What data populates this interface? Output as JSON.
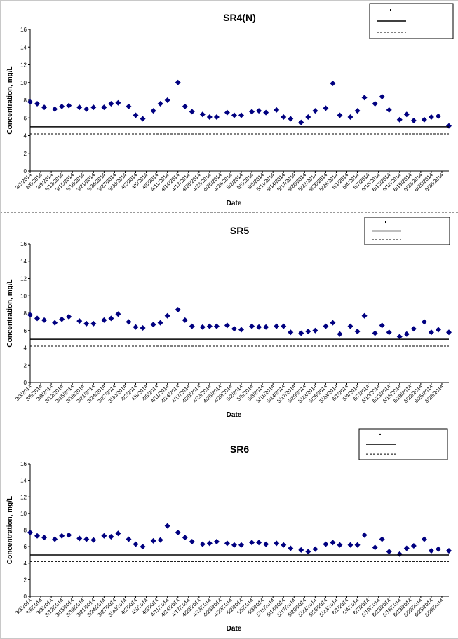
{
  "chart_data": [
    {
      "type": "scatter",
      "title": "SR4(N)",
      "xlabel": "Date",
      "ylabel": "Concentration, mg/L",
      "ylim": [
        0,
        16
      ],
      "yticks": [
        0,
        2,
        4,
        6,
        8,
        10,
        12,
        14,
        16
      ],
      "xlim": [
        "2014-03-03",
        "2014-06-30"
      ],
      "xtick_labels": [
        "3/3/2014",
        "3/6/2014",
        "3/9/2014",
        "3/12/2014",
        "3/15/2014",
        "3/18/2014",
        "3/21/2014",
        "3/24/2014",
        "3/27/2014",
        "3/30/2014",
        "4/2/2014",
        "4/5/2014",
        "4/8/2014",
        "4/11/2014",
        "4/14/2014",
        "4/17/2014",
        "4/20/2014",
        "4/23/2014",
        "4/26/2014",
        "4/29/2014",
        "5/2/2014",
        "5/5/2014",
        "5/8/2014",
        "5/11/2014",
        "5/14/2014",
        "5/17/2014",
        "5/20/2014",
        "5/23/2014",
        "5/26/2014",
        "5/29/2014",
        "6/1/2014",
        "6/4/2014",
        "6/7/2014",
        "6/10/2014",
        "6/13/2014",
        "6/16/2014",
        "6/19/2014",
        "6/22/2014",
        "6/25/2014",
        "6/28/2014"
      ],
      "grid": false,
      "legend_position": "top-right",
      "marker_color": "#000080",
      "series": [
        {
          "marker": "diamond",
          "x": [
            "2014-03-03",
            "2014-03-05",
            "2014-03-07",
            "2014-03-10",
            "2014-03-12",
            "2014-03-14",
            "2014-03-17",
            "2014-03-19",
            "2014-03-21",
            "2014-03-24",
            "2014-03-26",
            "2014-03-28",
            "2014-03-31",
            "2014-04-02",
            "2014-04-04",
            "2014-04-07",
            "2014-04-09",
            "2014-04-11",
            "2014-04-14",
            "2014-04-16",
            "2014-04-18",
            "2014-04-21",
            "2014-04-23",
            "2014-04-25",
            "2014-04-28",
            "2014-04-30",
            "2014-05-02",
            "2014-05-05",
            "2014-05-07",
            "2014-05-09",
            "2014-05-12",
            "2014-05-14",
            "2014-05-16",
            "2014-05-19",
            "2014-05-21",
            "2014-05-23",
            "2014-05-26",
            "2014-05-28",
            "2014-05-30",
            "2014-06-02",
            "2014-06-04",
            "2014-06-06",
            "2014-06-09",
            "2014-06-11",
            "2014-06-13",
            "2014-06-16",
            "2014-06-18",
            "2014-06-20",
            "2014-06-23",
            "2014-06-25",
            "2014-06-27",
            "2014-06-30"
          ],
          "y": [
            7.8,
            7.6,
            7.2,
            7.0,
            7.3,
            7.4,
            7.2,
            7.0,
            7.2,
            7.2,
            7.6,
            7.7,
            7.3,
            6.3,
            5.9,
            6.8,
            7.6,
            8.0,
            10.0,
            7.3,
            6.7,
            6.4,
            6.1,
            6.1,
            6.6,
            6.3,
            6.3,
            6.7,
            6.8,
            6.6,
            6.9,
            6.1,
            5.9,
            5.5,
            6.1,
            6.8,
            7.1,
            9.9,
            6.3,
            6.1,
            6.8,
            8.3,
            7.6,
            8.4,
            6.9,
            5.8,
            6.4,
            5.7,
            5.8,
            6.1,
            6.2,
            5.1
          ]
        },
        {
          "line": "solid",
          "y": 5.0
        },
        {
          "line": "dashed",
          "y": 4.2
        }
      ]
    },
    {
      "type": "scatter",
      "title": "SR5",
      "xlabel": "Date",
      "ylabel": "Concentration, mg/L",
      "ylim": [
        0,
        16
      ],
      "yticks": [
        0,
        2,
        4,
        6,
        8,
        10,
        12,
        14,
        16
      ],
      "xlim": [
        "2014-03-03",
        "2014-06-30"
      ],
      "xtick_labels": [
        "3/3/2014",
        "3/6/2014",
        "3/9/2014",
        "3/12/2014",
        "3/15/2014",
        "3/18/2014",
        "3/21/2014",
        "3/24/2014",
        "3/27/2014",
        "3/30/2014",
        "4/2/2014",
        "4/5/2014",
        "4/8/2014",
        "4/11/2014",
        "4/14/2014",
        "4/17/2014",
        "4/20/2014",
        "4/23/2014",
        "4/26/2014",
        "4/29/2014",
        "5/2/2014",
        "5/5/2014",
        "5/8/2014",
        "5/11/2014",
        "5/14/2014",
        "5/17/2014",
        "5/20/2014",
        "5/23/2014",
        "5/26/2014",
        "5/29/2014",
        "6/1/2014",
        "6/4/2014",
        "6/7/2014",
        "6/10/2014",
        "6/13/2014",
        "6/16/2014",
        "6/19/2014",
        "6/22/2014",
        "6/25/2014",
        "6/28/2014"
      ],
      "grid": false,
      "legend_position": "top-right",
      "marker_color": "#000080",
      "series": [
        {
          "marker": "diamond",
          "x": [
            "2014-03-03",
            "2014-03-05",
            "2014-03-07",
            "2014-03-10",
            "2014-03-12",
            "2014-03-14",
            "2014-03-17",
            "2014-03-19",
            "2014-03-21",
            "2014-03-24",
            "2014-03-26",
            "2014-03-28",
            "2014-03-31",
            "2014-04-02",
            "2014-04-04",
            "2014-04-07",
            "2014-04-09",
            "2014-04-11",
            "2014-04-14",
            "2014-04-16",
            "2014-04-18",
            "2014-04-21",
            "2014-04-23",
            "2014-04-25",
            "2014-04-28",
            "2014-04-30",
            "2014-05-02",
            "2014-05-05",
            "2014-05-07",
            "2014-05-09",
            "2014-05-12",
            "2014-05-14",
            "2014-05-16",
            "2014-05-19",
            "2014-05-21",
            "2014-05-23",
            "2014-05-26",
            "2014-05-28",
            "2014-05-30",
            "2014-06-02",
            "2014-06-04",
            "2014-06-06",
            "2014-06-09",
            "2014-06-11",
            "2014-06-13",
            "2014-06-16",
            "2014-06-18",
            "2014-06-20",
            "2014-06-23",
            "2014-06-25",
            "2014-06-27",
            "2014-06-30"
          ],
          "y": [
            7.8,
            7.4,
            7.2,
            6.9,
            7.3,
            7.6,
            7.1,
            6.8,
            6.8,
            7.2,
            7.4,
            7.9,
            7.0,
            6.4,
            6.3,
            6.7,
            6.9,
            7.7,
            8.4,
            7.2,
            6.5,
            6.4,
            6.5,
            6.5,
            6.6,
            6.2,
            6.1,
            6.5,
            6.4,
            6.4,
            6.5,
            6.5,
            5.8,
            5.7,
            5.9,
            6.0,
            6.5,
            6.9,
            5.6,
            6.5,
            5.9,
            7.7,
            5.7,
            6.6,
            5.8,
            5.3,
            5.6,
            6.2,
            7.0,
            5.8,
            6.1,
            5.8
          ]
        },
        {
          "line": "solid",
          "y": 5.0
        },
        {
          "line": "dashed",
          "y": 4.2
        }
      ]
    },
    {
      "type": "scatter",
      "title": "SR6",
      "xlabel": "Date",
      "ylabel": "Concentration, mg/L",
      "ylim": [
        0,
        16
      ],
      "yticks": [
        0,
        2,
        4,
        6,
        8,
        10,
        12,
        14,
        16
      ],
      "xlim": [
        "2014-03-03",
        "2014-06-30"
      ],
      "xtick_labels": [
        "3/3/2014",
        "3/6/2014",
        "3/9/2014",
        "3/12/2014",
        "3/15/2014",
        "3/18/2014",
        "3/21/2014",
        "3/24/2014",
        "3/27/2014",
        "3/30/2014",
        "4/2/2014",
        "4/5/2014",
        "4/8/2014",
        "4/11/2014",
        "4/14/2014",
        "4/17/2014",
        "4/20/2014",
        "4/23/2014",
        "4/26/2014",
        "4/29/2014",
        "5/2/2014",
        "5/5/2014",
        "5/8/2014",
        "5/11/2014",
        "5/14/2014",
        "5/17/2014",
        "5/20/2014",
        "5/23/2014",
        "5/26/2014",
        "5/29/2014",
        "6/1/2014",
        "6/4/2014",
        "6/7/2014",
        "6/10/2014",
        "6/13/2014",
        "6/16/2014",
        "6/19/2014",
        "6/22/2014",
        "6/25/2014",
        "6/28/2014"
      ],
      "grid": false,
      "legend_position": "top-right",
      "marker_color": "#000080",
      "series": [
        {
          "marker": "diamond",
          "x": [
            "2014-03-03",
            "2014-03-05",
            "2014-03-07",
            "2014-03-10",
            "2014-03-12",
            "2014-03-14",
            "2014-03-17",
            "2014-03-19",
            "2014-03-21",
            "2014-03-24",
            "2014-03-26",
            "2014-03-28",
            "2014-03-31",
            "2014-04-02",
            "2014-04-04",
            "2014-04-07",
            "2014-04-09",
            "2014-04-11",
            "2014-04-14",
            "2014-04-16",
            "2014-04-18",
            "2014-04-21",
            "2014-04-23",
            "2014-04-25",
            "2014-04-28",
            "2014-04-30",
            "2014-05-02",
            "2014-05-05",
            "2014-05-07",
            "2014-05-09",
            "2014-05-12",
            "2014-05-14",
            "2014-05-16",
            "2014-05-19",
            "2014-05-21",
            "2014-05-23",
            "2014-05-26",
            "2014-05-28",
            "2014-05-30",
            "2014-06-02",
            "2014-06-04",
            "2014-06-06",
            "2014-06-09",
            "2014-06-11",
            "2014-06-13",
            "2014-06-16",
            "2014-06-18",
            "2014-06-20",
            "2014-06-23",
            "2014-06-25",
            "2014-06-27",
            "2014-06-30"
          ],
          "y": [
            7.7,
            7.3,
            7.1,
            6.9,
            7.3,
            7.4,
            7.0,
            6.9,
            6.8,
            7.3,
            7.2,
            7.6,
            6.9,
            6.3,
            6.0,
            6.7,
            6.8,
            8.5,
            7.7,
            7.1,
            6.6,
            6.3,
            6.4,
            6.6,
            6.4,
            6.2,
            6.2,
            6.5,
            6.5,
            6.3,
            6.4,
            6.2,
            5.8,
            5.6,
            5.4,
            5.7,
            6.3,
            6.5,
            6.2,
            6.2,
            6.2,
            7.4,
            5.9,
            6.9,
            5.4,
            5.1,
            5.8,
            6.1,
            6.9,
            5.5,
            5.7,
            5.5
          ]
        },
        {
          "line": "solid",
          "y": 5.0
        },
        {
          "line": "dashed",
          "y": 4.2
        }
      ]
    }
  ]
}
